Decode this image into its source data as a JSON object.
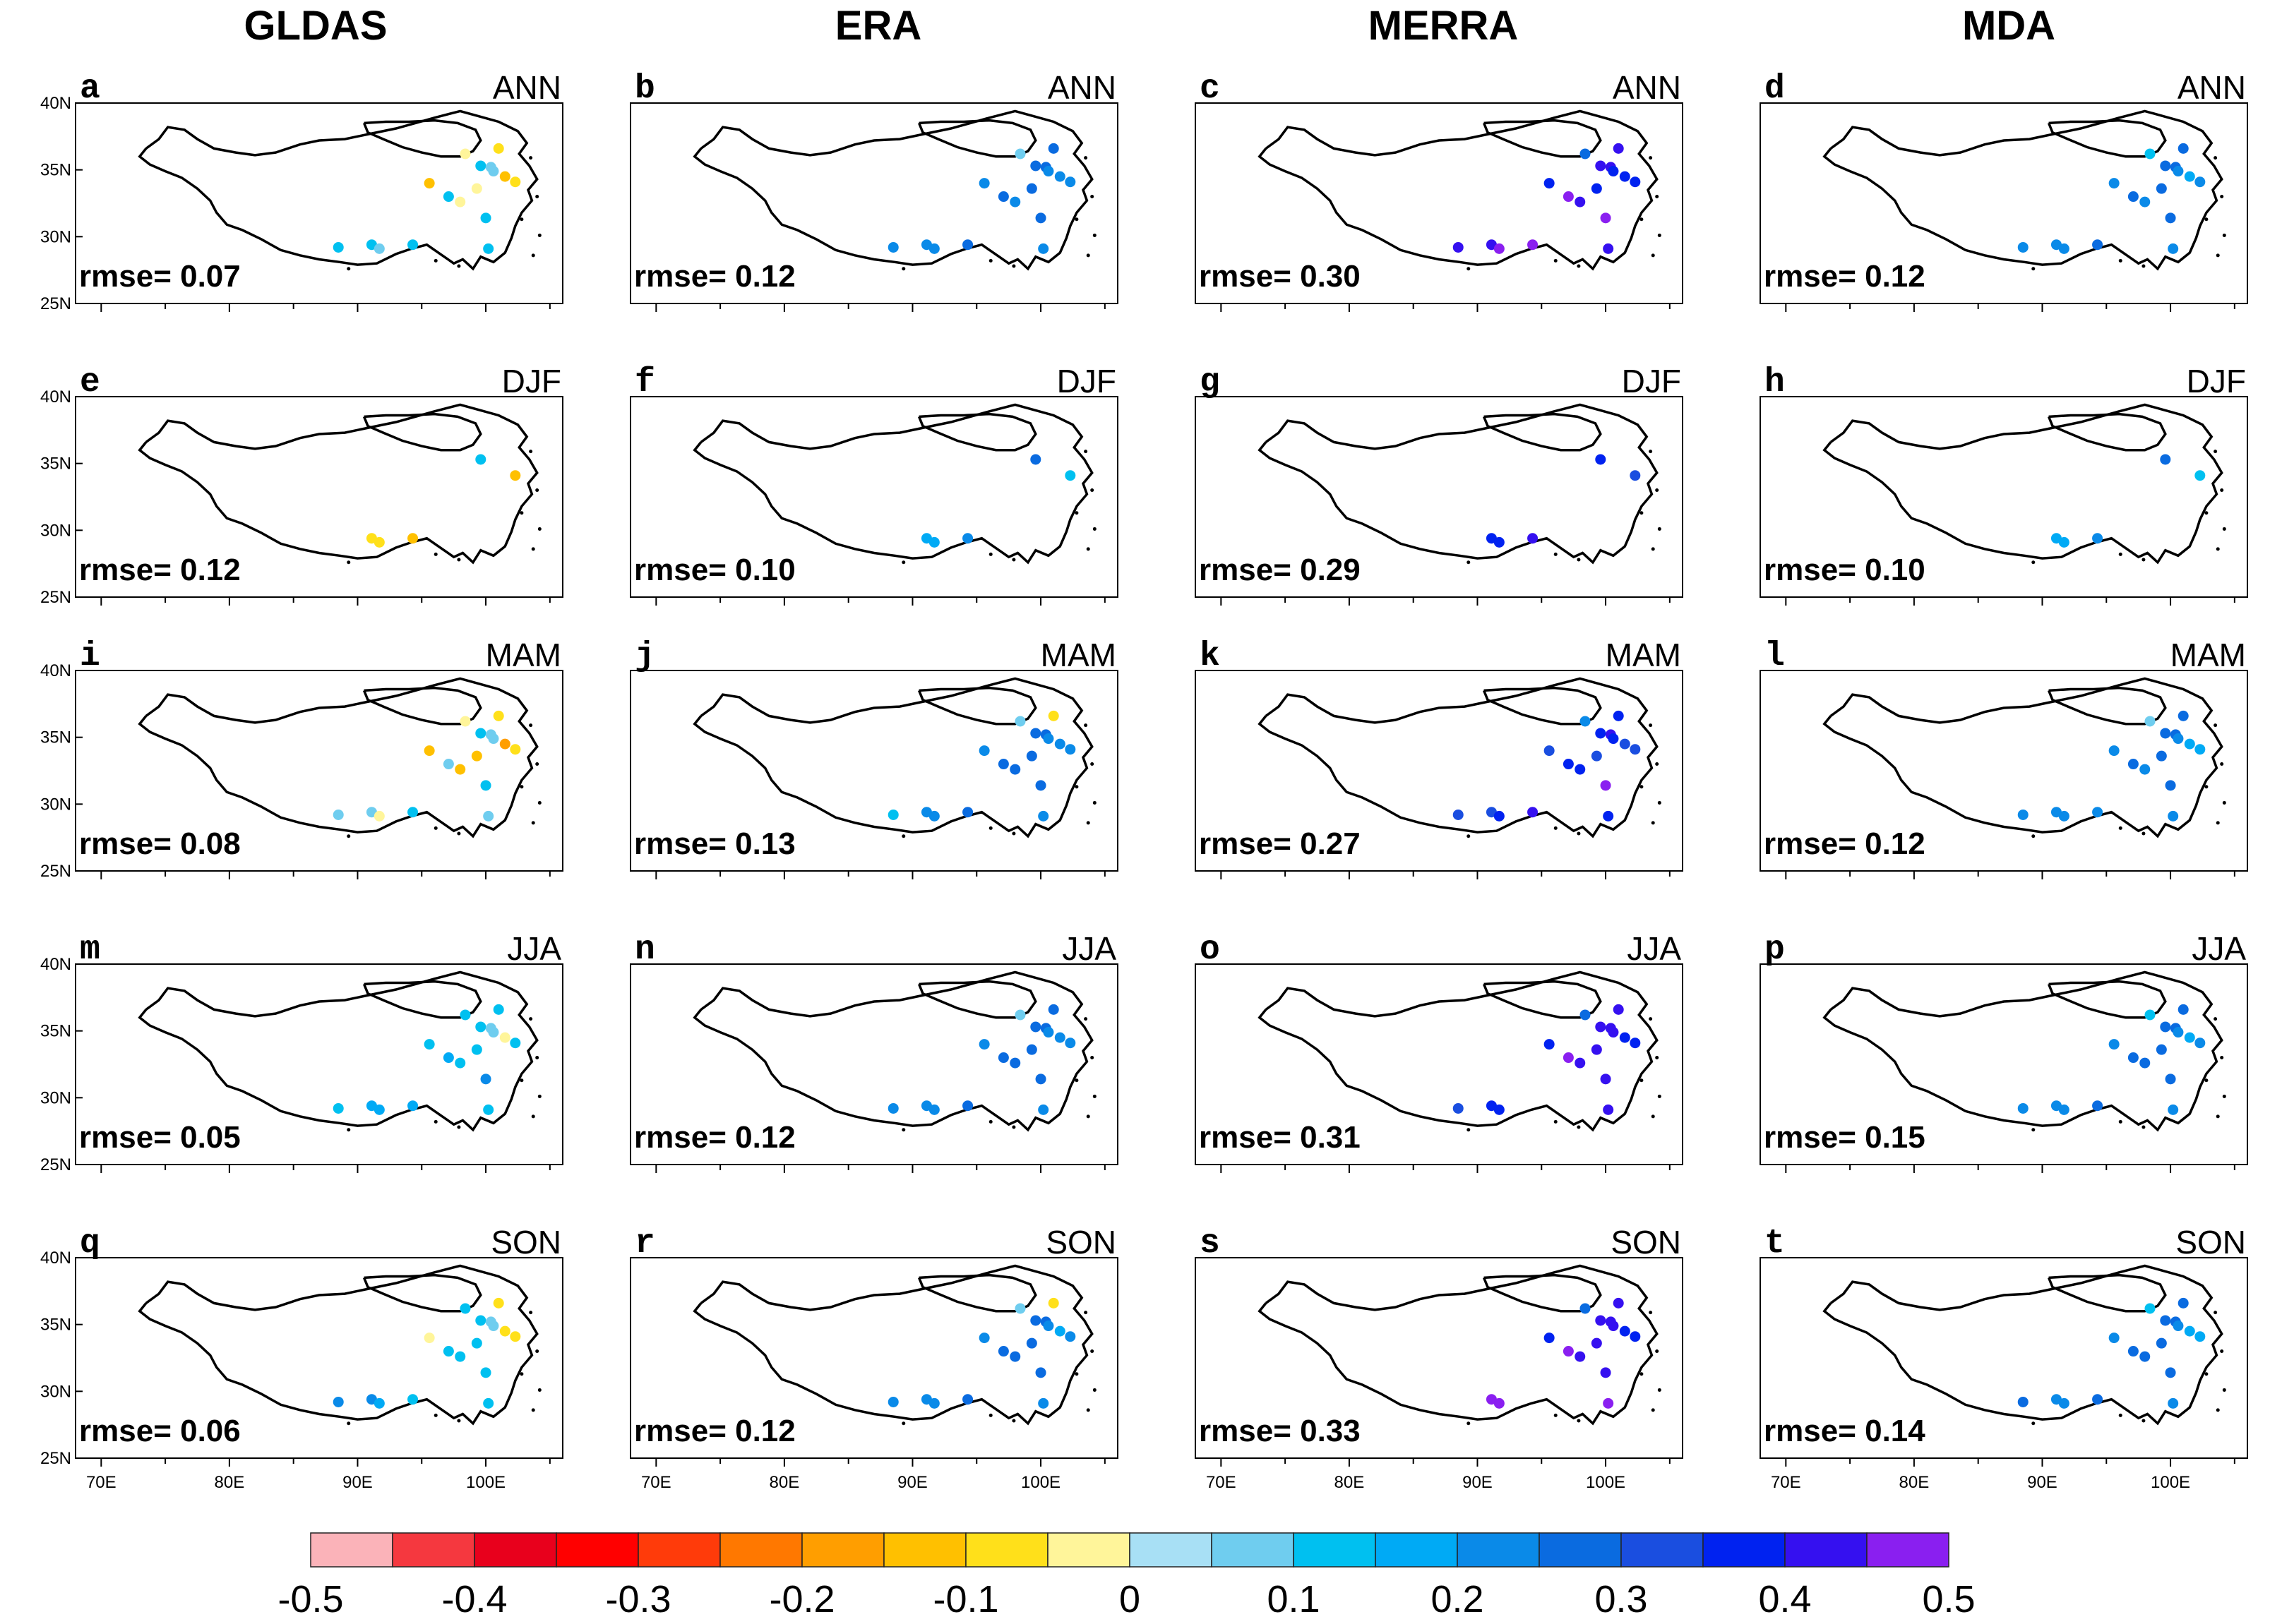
{
  "chart_data": {
    "type": "scatter",
    "description_type": "map-panel station scatter grid",
    "columns": [
      "GLDAS",
      "ERA",
      "MERRA",
      "MDA"
    ],
    "rows": [
      "ANN",
      "DJF",
      "MAM",
      "JJA",
      "SON"
    ],
    "panel_letters": [
      "a",
      "b",
      "c",
      "d",
      "e",
      "f",
      "g",
      "h",
      "i",
      "j",
      "k",
      "l",
      "m",
      "n",
      "o",
      "p",
      "q",
      "r",
      "s",
      "t"
    ],
    "rmse_label": "rmse=",
    "rmse": [
      [
        "0.07",
        "0.12",
        "0.30",
        "0.12"
      ],
      [
        "0.12",
        "0.10",
        "0.29",
        "0.10"
      ],
      [
        "0.08",
        "0.13",
        "0.27",
        "0.12"
      ],
      [
        "0.05",
        "0.12",
        "0.31",
        "0.15"
      ],
      [
        "0.06",
        "0.12",
        "0.33",
        "0.14"
      ]
    ],
    "x_ticks": [
      "70E",
      "80E",
      "90E",
      "100E"
    ],
    "x_tick_values": [
      70,
      80,
      90,
      100
    ],
    "y_ticks": [
      "40N",
      "35N",
      "30N",
      "25N"
    ],
    "y_tick_values": [
      40,
      35,
      30,
      25
    ],
    "xlim": [
      68,
      106
    ],
    "ylim": [
      25,
      40
    ],
    "stations": [
      {
        "lon": 88.5,
        "lat": 29.2
      },
      {
        "lon": 91.1,
        "lat": 29.4
      },
      {
        "lon": 91.7,
        "lat": 29.1
      },
      {
        "lon": 94.3,
        "lat": 29.4
      },
      {
        "lon": 95.6,
        "lat": 34.0
      },
      {
        "lon": 97.1,
        "lat": 33.0
      },
      {
        "lon": 98.0,
        "lat": 32.6
      },
      {
        "lon": 98.4,
        "lat": 36.2
      },
      {
        "lon": 99.3,
        "lat": 33.6
      },
      {
        "lon": 99.6,
        "lat": 35.3
      },
      {
        "lon": 100.0,
        "lat": 31.4
      },
      {
        "lon": 100.2,
        "lat": 29.1
      },
      {
        "lon": 100.4,
        "lat": 35.2
      },
      {
        "lon": 101.0,
        "lat": 36.6
      },
      {
        "lon": 101.5,
        "lat": 34.5
      },
      {
        "lon": 102.3,
        "lat": 34.1
      },
      {
        "lon": 100.6,
        "lat": 34.9
      }
    ],
    "station_values": [
      [
        [
          0.1,
          0.1,
          0.08,
          0.1,
          -0.15,
          0.1,
          -0.05,
          -0.05,
          -0.05,
          0.1,
          0.1,
          0.1,
          0.05,
          -0.1,
          -0.15,
          -0.1,
          0.08
        ],
        [
          0.2,
          0.2,
          0.2,
          0.25,
          0.2,
          0.25,
          0.2,
          0.08,
          0.25,
          0.25,
          0.25,
          0.2,
          0.25,
          0.25,
          0.2,
          0.2,
          0.2
        ],
        [
          0.4,
          0.4,
          0.45,
          0.45,
          0.35,
          0.45,
          0.4,
          0.25,
          0.35,
          0.4,
          0.45,
          0.4,
          0.4,
          0.4,
          0.35,
          0.35,
          0.35
        ],
        [
          0.2,
          0.2,
          0.2,
          0.25,
          0.2,
          0.25,
          0.2,
          0.1,
          0.25,
          0.25,
          0.25,
          0.2,
          0.25,
          0.25,
          0.15,
          0.2,
          0.2
        ]
      ],
      [
        [
          null,
          -0.08,
          -0.1,
          -0.12,
          null,
          null,
          null,
          null,
          null,
          0.1,
          null,
          null,
          null,
          null,
          null,
          -0.15,
          null
        ],
        [
          null,
          0.15,
          0.15,
          0.2,
          null,
          null,
          null,
          null,
          null,
          0.25,
          null,
          null,
          null,
          null,
          null,
          0.1,
          null
        ],
        [
          null,
          0.35,
          0.35,
          0.4,
          null,
          null,
          null,
          null,
          null,
          0.35,
          null,
          null,
          null,
          null,
          null,
          0.3,
          null
        ],
        [
          null,
          0.15,
          0.15,
          0.2,
          null,
          null,
          null,
          null,
          null,
          0.25,
          null,
          null,
          null,
          null,
          null,
          0.1,
          null
        ]
      ],
      [
        [
          0.08,
          0.08,
          -0.05,
          0.1,
          -0.15,
          0.08,
          -0.12,
          -0.05,
          -0.15,
          0.1,
          0.1,
          0.08,
          0.05,
          -0.1,
          -0.2,
          -0.1,
          0.08
        ],
        [
          0.1,
          0.2,
          0.2,
          0.25,
          0.2,
          0.25,
          0.25,
          0.08,
          0.25,
          0.25,
          0.25,
          0.2,
          0.25,
          -0.1,
          0.2,
          0.2,
          0.2
        ],
        [
          0.3,
          0.3,
          0.35,
          0.4,
          0.3,
          0.35,
          0.35,
          0.2,
          0.3,
          0.35,
          0.45,
          0.35,
          0.4,
          0.35,
          0.3,
          0.3,
          0.35
        ],
        [
          0.2,
          0.2,
          0.2,
          0.2,
          0.2,
          0.25,
          0.2,
          0.08,
          0.25,
          0.25,
          0.25,
          0.2,
          0.25,
          0.25,
          0.15,
          0.15,
          0.2
        ]
      ],
      [
        [
          0.1,
          0.15,
          0.15,
          0.15,
          0.1,
          0.15,
          0.1,
          0.1,
          0.1,
          0.1,
          0.2,
          0.1,
          0.05,
          0.1,
          -0.05,
          0.1,
          0.08
        ],
        [
          0.2,
          0.2,
          0.2,
          0.25,
          0.2,
          0.25,
          0.25,
          0.08,
          0.25,
          0.25,
          0.25,
          0.2,
          0.25,
          0.25,
          0.2,
          0.2,
          0.2
        ],
        [
          0.3,
          0.35,
          0.35,
          null,
          0.35,
          0.45,
          0.4,
          0.25,
          0.4,
          0.4,
          0.4,
          0.4,
          0.4,
          0.4,
          0.35,
          0.35,
          0.4
        ],
        [
          0.2,
          0.2,
          0.2,
          0.25,
          0.2,
          0.25,
          0.25,
          0.1,
          0.25,
          0.25,
          0.25,
          0.2,
          0.25,
          0.25,
          0.15,
          0.2,
          0.2
        ]
      ],
      [
        [
          0.2,
          0.2,
          0.15,
          0.1,
          -0.05,
          0.1,
          0.1,
          0.1,
          0.1,
          0.1,
          0.1,
          0.1,
          0.05,
          -0.1,
          -0.1,
          -0.1,
          0.08
        ],
        [
          0.2,
          0.2,
          0.2,
          0.25,
          0.2,
          0.25,
          0.25,
          0.08,
          0.25,
          0.25,
          0.25,
          0.2,
          0.25,
          -0.1,
          0.15,
          0.2,
          0.2
        ],
        [
          null,
          0.45,
          0.45,
          null,
          0.35,
          0.45,
          0.4,
          0.25,
          0.4,
          0.4,
          0.4,
          0.45,
          0.4,
          0.4,
          0.35,
          0.35,
          0.4
        ],
        [
          0.25,
          0.2,
          0.2,
          0.25,
          0.2,
          0.25,
          0.25,
          0.1,
          0.25,
          0.25,
          0.25,
          0.2,
          0.25,
          0.25,
          0.15,
          0.15,
          0.2
        ]
      ]
    ],
    "colorbar": {
      "ticks": [
        "-0.5",
        "-0.4",
        "-0.3",
        "-0.2",
        "-0.1",
        "0",
        "0.1",
        "0.2",
        "0.3",
        "0.4",
        "0.5"
      ],
      "levels": [
        -0.5,
        -0.45,
        -0.4,
        -0.35,
        -0.3,
        -0.25,
        -0.2,
        -0.15,
        -0.1,
        -0.05,
        0,
        0.05,
        0.1,
        0.15,
        0.2,
        0.25,
        0.3,
        0.35,
        0.4,
        0.45,
        0.5
      ],
      "colors": [
        "#fbb3b9",
        "#f5383f",
        "#e8001c",
        "#ff0000",
        "#ff3b0a",
        "#ff7800",
        "#ff9e00",
        "#ffc000",
        "#ffe01a",
        "#fff59a",
        "#a8e0f5",
        "#6fcdef",
        "#00c0f0",
        "#00aaf5",
        "#0a8ae8",
        "#0a6be0",
        "#1a4ee0",
        "#0022f0",
        "#3510f0",
        "#8a1ff0"
      ]
    }
  }
}
